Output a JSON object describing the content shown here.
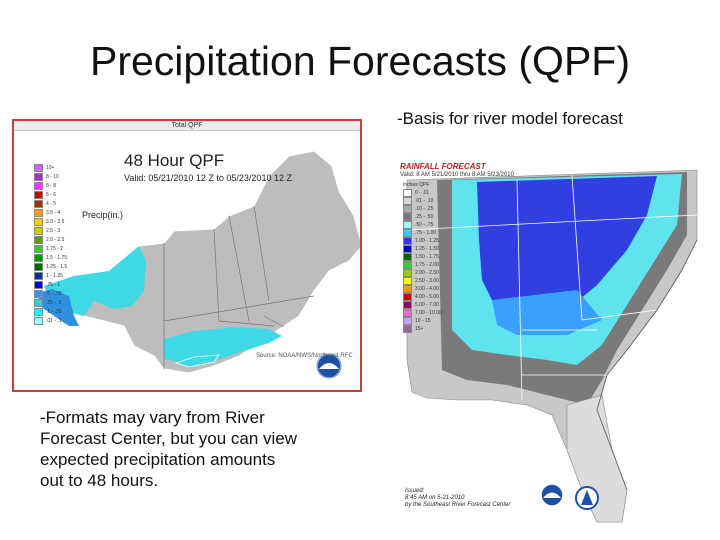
{
  "slide": {
    "title": "Precipitation Forecasts (QPF)",
    "note_right": "-Basis for river model forecast",
    "note_left": "-Formats may vary from River Forecast Center, but you can view expected precipitation amounts out to 48 hours."
  },
  "left_map": {
    "header": "Total QPF",
    "title": "48 Hour QPF",
    "valid": "Valid: 05/21/2010 12 Z to 05/23/2010 12 Z",
    "unit": "Precip(in.)",
    "source": "Source: NOAA/NWS/Northeast RFC",
    "logo": "noaa-logo",
    "legend": [
      {
        "label": "10+",
        "color": "#cc66ff"
      },
      {
        "label": "8 - 10",
        "color": "#9933cc"
      },
      {
        "label": "6 - 8",
        "color": "#ff33ff"
      },
      {
        "label": "5 - 6",
        "color": "#cc0000"
      },
      {
        "label": "4 - 5",
        "color": "#993300"
      },
      {
        "label": "3.5 - 4",
        "color": "#ff9900"
      },
      {
        "label": "3.0 - 3.5",
        "color": "#ffcc00"
      },
      {
        "label": "2.5 - 3",
        "color": "#cccc00"
      },
      {
        "label": "2.0 - 2.5",
        "color": "#669900"
      },
      {
        "label": "1.75 - 2",
        "color": "#33cc33"
      },
      {
        "label": "1.5 - 1.75",
        "color": "#009900"
      },
      {
        "label": "1.25 - 1.5",
        "color": "#006600"
      },
      {
        "label": "1 - 1.25",
        "color": "#003399"
      },
      {
        "label": ".75 - 1",
        "color": "#0000ff"
      },
      {
        "label": ".5 - .75",
        "color": "#3399ff"
      },
      {
        "label": ".25 - .5",
        "color": "#33cccc"
      },
      {
        "label": ".1 - .25",
        "color": "#00ffff"
      },
      {
        "label": ".01 - .1",
        "color": "#99ffff"
      }
    ]
  },
  "right_map": {
    "header": "RAINFALL FORECAST",
    "valid": "Valid: 8 AM 5/21/2010 thru 8 AM 5/23/2010",
    "source_line1": "Issued:",
    "source_line2": "8:45 AM on 5-21-2010",
    "source_line3": "by the Southeast River Forecast Center",
    "logo1": "noaa-logo",
    "logo2": "nws-logo",
    "legend_title": "Inches QPF",
    "legend": [
      {
        "label": "0 - .01",
        "color": "#ffffff"
      },
      {
        "label": ".01 - .10",
        "color": "#d8d8d8"
      },
      {
        "label": ".10 - .25",
        "color": "#a8a8a8"
      },
      {
        "label": ".25 - .50",
        "color": "#787878"
      },
      {
        "label": ".50 - .75",
        "color": "#99ffff"
      },
      {
        "label": ".75 - 1.00",
        "color": "#33ccff"
      },
      {
        "label": "1.00 - 1.25",
        "color": "#3333ff"
      },
      {
        "label": "1.25 - 1.50",
        "color": "#0000cc"
      },
      {
        "label": "1.50 - 1.75",
        "color": "#006600"
      },
      {
        "label": "1.75 - 2.00",
        "color": "#33cc33"
      },
      {
        "label": "2.00 - 2.50",
        "color": "#99cc00"
      },
      {
        "label": "2.50 - 3.00",
        "color": "#ffff00"
      },
      {
        "label": "3.00 - 4.00",
        "color": "#ff9900"
      },
      {
        "label": "4.00 - 5.00",
        "color": "#cc0000"
      },
      {
        "label": "5.00 - 7.00",
        "color": "#990066"
      },
      {
        "label": "7.00 - 10.00",
        "color": "#ff66cc"
      },
      {
        "label": "10 - 15",
        "color": "#cc99ff"
      },
      {
        "label": "15+",
        "color": "#996699"
      }
    ]
  }
}
